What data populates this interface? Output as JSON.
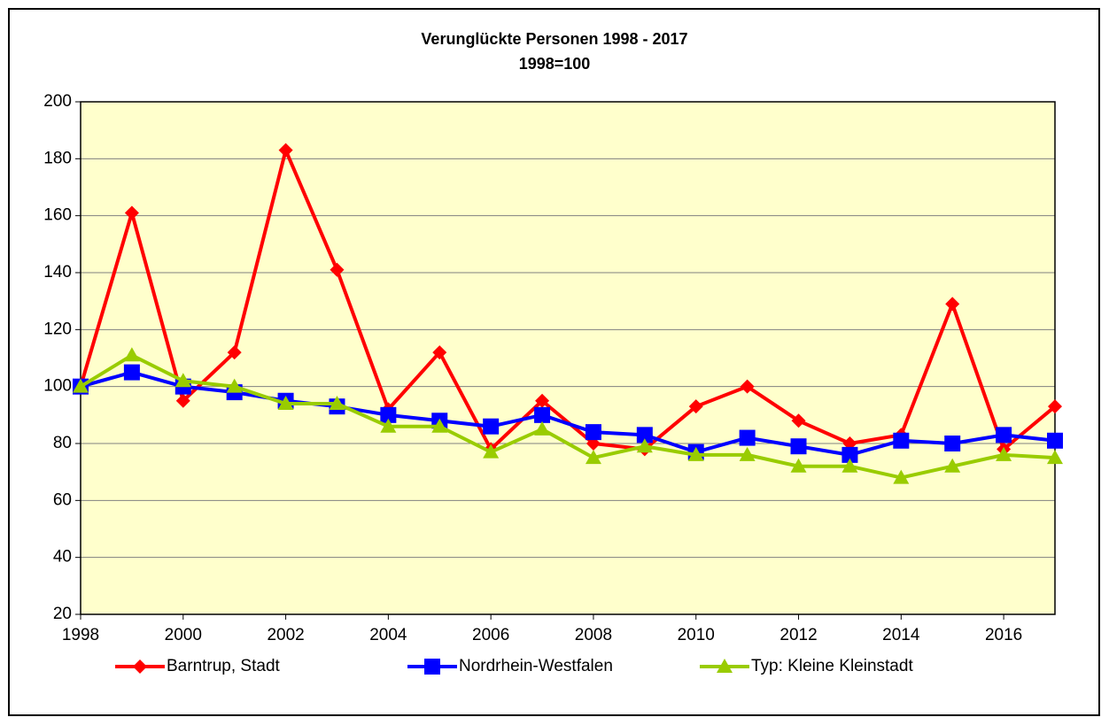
{
  "chart_data": {
    "type": "line",
    "title": "Verunglückte Personen 1998 - 2017",
    "subtitle": "1998=100",
    "x": [
      1998,
      1999,
      2000,
      2001,
      2002,
      2003,
      2004,
      2005,
      2006,
      2007,
      2008,
      2009,
      2010,
      2011,
      2012,
      2013,
      2014,
      2015,
      2016,
      2017
    ],
    "series": [
      {
        "name": "Barntrup, Stadt",
        "color": "#ff0000",
        "marker": "diamond",
        "values": [
          100,
          161,
          95,
          112,
          183,
          141,
          92,
          112,
          78,
          95,
          80,
          78,
          93,
          100,
          88,
          80,
          83,
          129,
          78,
          93
        ]
      },
      {
        "name": "Nordrhein-Westfalen",
        "color": "#0000ff",
        "marker": "square",
        "values": [
          100,
          105,
          100,
          98,
          95,
          93,
          90,
          88,
          86,
          90,
          84,
          83,
          77,
          82,
          79,
          76,
          81,
          80,
          83,
          81
        ]
      },
      {
        "name": "Typ: Kleine Kleinstadt",
        "color": "#99cc00",
        "marker": "triangle",
        "values": [
          100,
          111,
          102,
          100,
          94,
          94,
          86,
          86,
          77,
          85,
          75,
          79,
          76,
          76,
          72,
          72,
          68,
          72,
          76,
          75
        ]
      }
    ],
    "xlim": [
      1998,
      2017
    ],
    "xticks": [
      1998,
      2000,
      2002,
      2004,
      2006,
      2008,
      2010,
      2012,
      2014,
      2016
    ],
    "ylim": [
      20,
      200
    ],
    "yticks": [
      20,
      40,
      60,
      80,
      100,
      120,
      140,
      160,
      180,
      200
    ],
    "grid": true,
    "background": "#ffffcc",
    "legend": "bottom"
  }
}
